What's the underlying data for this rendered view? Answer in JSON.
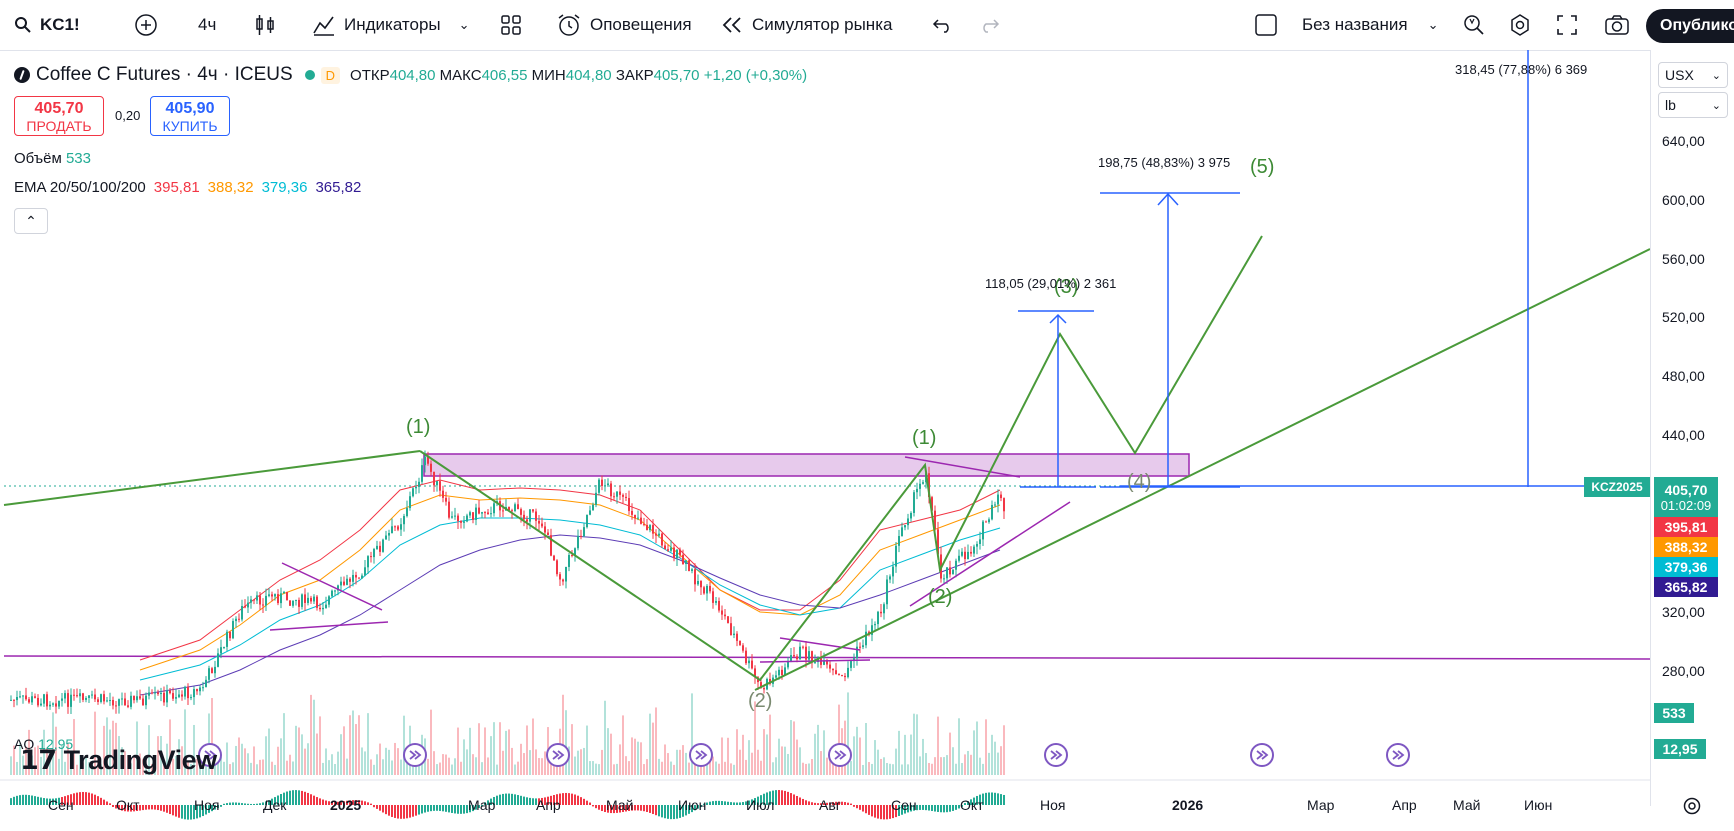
{
  "toolbar": {
    "symbol": "KC1!",
    "interval": "4ч",
    "indicators": "Индикаторы",
    "alerts": "Оповещения",
    "replay": "Симулятор рынка",
    "layout_name": "Без названия",
    "publish": "Опублико"
  },
  "legend": {
    "title": "Coffee C Futures · 4ч · ICEUS",
    "badge": "D",
    "open_label": "ОТКР",
    "open": "404,80",
    "high_label": "МАКС",
    "high": "406,55",
    "low_label": "МИН",
    "low": "404,80",
    "close_label": "ЗАКР",
    "close": "405,70",
    "change": "+1,20 (+0,30%)"
  },
  "trade": {
    "sell_price": "405,70",
    "sell_label": "ПРОДАТЬ",
    "spread": "0,20",
    "buy_price": "405,90",
    "buy_label": "КУПИТЬ"
  },
  "volume": {
    "label": "Объём",
    "value": "533"
  },
  "ema": {
    "label": "EMA 20/50/100/200",
    "v20": "395,81",
    "v50": "388,32",
    "v100": "379,36",
    "v200": "365,82"
  },
  "ao": {
    "label": "AO",
    "value": "12,95"
  },
  "right_scale": {
    "currency": "USX",
    "unit": "lb",
    "prices": [
      "640,00",
      "600,00",
      "560,00",
      "520,00",
      "480,00",
      "440,00",
      "320,00",
      "280,00"
    ],
    "symbol_tag": "KCZ2025",
    "last_price": "405,70",
    "countdown": "01:02:09",
    "ema20": "395,81",
    "ema50": "388,32",
    "ema100": "379,36",
    "ema200": "365,82",
    "volume": "533",
    "ao": "12,95"
  },
  "x_axis": [
    "Сен",
    "Окт",
    "Ноя",
    "Дек",
    "2025",
    "Мар",
    "Апр",
    "Май",
    "Июн",
    "Июл",
    "Авг",
    "Сен",
    "Окт",
    "Ноя",
    "2026",
    "Мар",
    "Апр",
    "Май",
    "Июн"
  ],
  "annotations": {
    "measure_small": "118,05 (29,01%) 2 361",
    "measure_mid": "198,75 (48,83%) 3 975",
    "measure_big": "318,45 (77,88%) 6 369",
    "waves": [
      "(1)",
      "(2)",
      "(1)",
      "(2)",
      "(3)",
      "(4)",
      "(5)"
    ]
  },
  "watermark": "TradingView",
  "colors": {
    "up": "#22ab94",
    "down": "#f23645",
    "wave": "#4a9a3a",
    "zone": "#9c27b0",
    "measure": "#2962ff",
    "ema20": "#f23645",
    "ema50": "#ff9800",
    "ema100": "#00bcd4",
    "ema200": "#311b92"
  }
}
